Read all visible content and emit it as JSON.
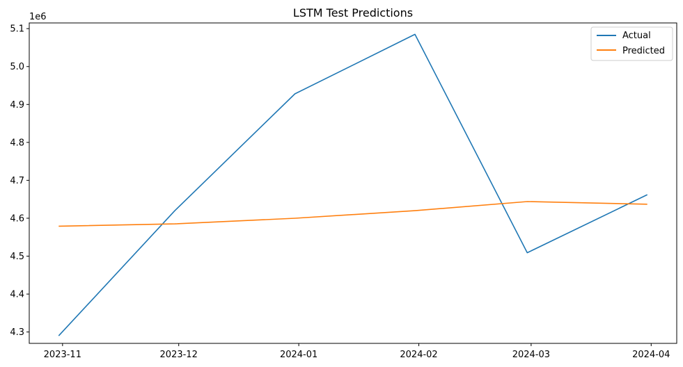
{
  "chart_data": {
    "type": "line",
    "title": "LSTM Test Predictions",
    "xlabel": "",
    "ylabel": "",
    "y_offset_label": "1e6",
    "x": [
      "2023-10-31",
      "2023-11-30",
      "2023-12-31",
      "2024-01-31",
      "2024-02-29",
      "2024-03-31"
    ],
    "x_ticks": [
      "2023-11",
      "2023-12",
      "2024-01",
      "2024-02",
      "2024-03",
      "2024-04"
    ],
    "y_ticks": [
      "4.3",
      "4.4",
      "4.5",
      "4.6",
      "4.7",
      "4.8",
      "4.9",
      "5.0",
      "5.1"
    ],
    "ylim": [
      4.27,
      5.115
    ],
    "y_scale": 1000000,
    "series": [
      {
        "name": "Actual",
        "color": "#1f77b4",
        "values": [
          4290000,
          4620000,
          4928000,
          5085000,
          4509000,
          4662000
        ]
      },
      {
        "name": "Predicted",
        "color": "#ff7f0e",
        "values": [
          4579000,
          4585000,
          4600000,
          4620000,
          4644000,
          4637000
        ]
      }
    ],
    "grid": false,
    "legend": "top-right"
  }
}
